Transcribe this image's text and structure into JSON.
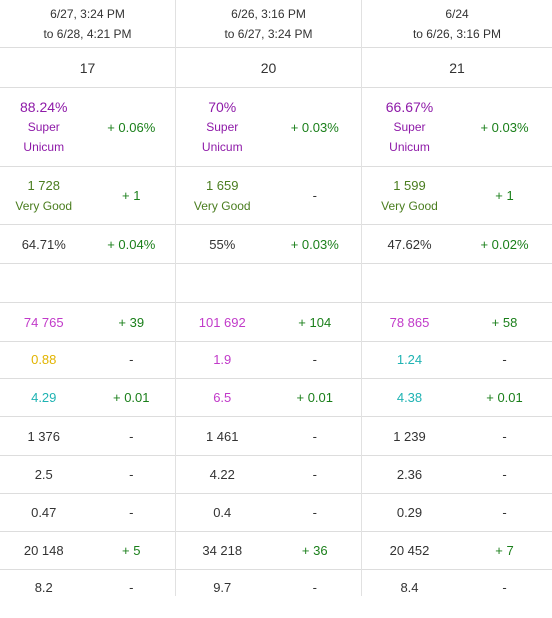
{
  "columns": [
    {
      "period_from": "6/27, 3:24 PM",
      "period_to": "to 6/28, 4:21 PM",
      "count": "17",
      "winrate": "88.24%",
      "winrate_label1": "Super",
      "winrate_label2": "Unicum",
      "winrate_delta": "+ 0.06%",
      "rating": "1 728",
      "rating_label": "Very Good",
      "rating_delta": "+ 1",
      "survival": "64.71%",
      "survival_delta": "+ 0.04%",
      "damage": "74 765",
      "damage_delta": "+ 39",
      "frags": "0.88",
      "frags_delta": "-",
      "kd": "4.29",
      "kd_delta": "+ 0.01",
      "stat4": "1 376",
      "stat4_delta": "-",
      "stat5": "2.5",
      "stat5_delta": "-",
      "stat6": "0.47",
      "stat6_delta": "-",
      "stat7": "20 148",
      "stat7_delta": "+ 5",
      "stat8": "8.2",
      "stat8_delta": "-"
    },
    {
      "period_from": "6/26, 3:16 PM",
      "period_to": "to 6/27, 3:24 PM",
      "count": "20",
      "winrate": "70%",
      "winrate_label1": "Super",
      "winrate_label2": "Unicum",
      "winrate_delta": "+ 0.03%",
      "rating": "1 659",
      "rating_label": "Very Good",
      "rating_delta": "-",
      "survival": "55%",
      "survival_delta": "+ 0.03%",
      "damage": "101 692",
      "damage_delta": "+ 104",
      "frags": "1.9",
      "frags_delta": "-",
      "kd": "6.5",
      "kd_delta": "+ 0.01",
      "stat4": "1 461",
      "stat4_delta": "-",
      "stat5": "4.22",
      "stat5_delta": "-",
      "stat6": "0.4",
      "stat6_delta": "-",
      "stat7": "34 218",
      "stat7_delta": "+ 36",
      "stat8": "9.7",
      "stat8_delta": "-"
    },
    {
      "period_from": "6/24",
      "period_to": "to 6/26, 3:16 PM",
      "count": "21",
      "winrate": "66.67%",
      "winrate_label1": "Super",
      "winrate_label2": "Unicum",
      "winrate_delta": "+ 0.03%",
      "rating": "1 599",
      "rating_label": "Very Good",
      "rating_delta": "+ 1",
      "survival": "47.62%",
      "survival_delta": "+ 0.02%",
      "damage": "78 865",
      "damage_delta": "+ 58",
      "frags": "1.24",
      "frags_delta": "-",
      "kd": "4.38",
      "kd_delta": "+ 0.01",
      "stat4": "1 239",
      "stat4_delta": "-",
      "stat5": "2.36",
      "stat5_delta": "-",
      "stat6": "0.29",
      "stat6_delta": "-",
      "stat7": "20 452",
      "stat7_delta": "+ 7",
      "stat8": "8.4",
      "stat8_delta": "-"
    }
  ],
  "colors": {
    "super_unicum": "#8e1aa8",
    "delta_positive": "#1a7f1a",
    "very_good": "#4a7d1f",
    "damage": "#c13ac9",
    "frags_col0": "#e2b400",
    "frags_col1": "#c13ac9",
    "frags_col2": "#1fb3b3",
    "kd_col0": "#1fb3b3",
    "kd_col1": "#c13ac9",
    "kd_col2": "#1fb3b3"
  }
}
